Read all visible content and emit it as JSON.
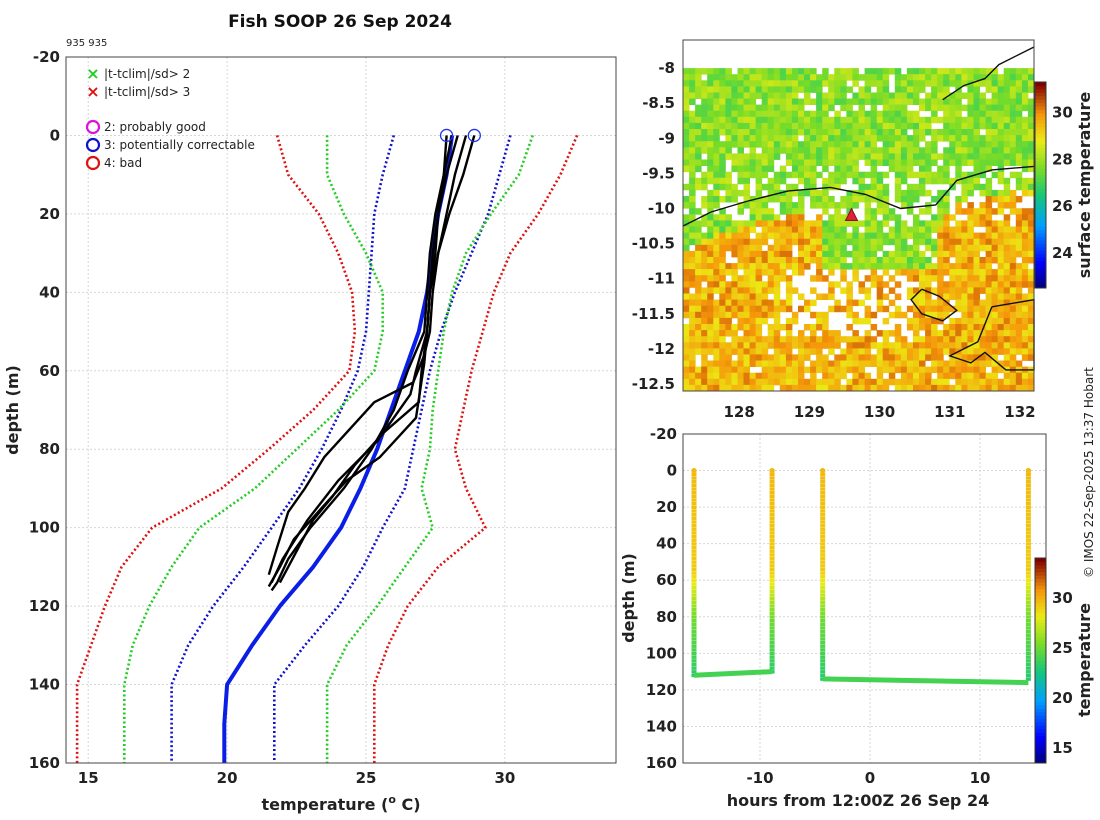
{
  "title": "Fish SOOP 26 Sep 2024",
  "subtitle": "935 935",
  "copyright": "© IMOS 22-Sep-2025 13:37 Hobart",
  "colors": {
    "clim3": "#dd1111",
    "clim2": "#22cc22",
    "clim1": "#1111cc",
    "mean": "#0a1ee6",
    "profile": "#000000",
    "flag_circle": "#2233ee"
  },
  "chart_data": [
    {
      "type": "line",
      "name": "profile",
      "xlabel": "temperature (",
      "xlabel_sup": "o",
      "xlabel_end": " C)",
      "ylabel": "depth (m)",
      "xlim": [
        14.2,
        34.0
      ],
      "ylim": [
        -20,
        160
      ],
      "xticks": [
        "15",
        "20",
        "25",
        "30"
      ],
      "xtick_values": [
        15,
        20,
        25,
        30
      ],
      "yticks": [
        "-20",
        "0",
        "20",
        "40",
        "60",
        "80",
        "100",
        "120",
        "140",
        "160"
      ],
      "ytick_values": [
        -20,
        0,
        20,
        40,
        60,
        80,
        100,
        120,
        140,
        160
      ],
      "legend_x": [
        {
          "label": "|t-tclim|/sd> 2",
          "color": "#22cc22"
        },
        {
          "label": "|t-tclim|/sd> 3",
          "color": "#dd1111"
        }
      ],
      "legend_o": [
        {
          "label": "2: probably good",
          "color": "#dd11dd"
        },
        {
          "label": "3: potentially correctable",
          "color": "#1111cc"
        },
        {
          "label": "4: bad",
          "color": "#dd1111"
        }
      ],
      "series": [
        {
          "name": "mean",
          "style": "mean",
          "temp": [
            28.1,
            27.9,
            27.6,
            27.4,
            27.2,
            26.9,
            26.4,
            25.9,
            25.4,
            24.8,
            24.1,
            23.1,
            21.9,
            20.9,
            20.0,
            19.9,
            19.9
          ],
          "depth": [
            0,
            10,
            20,
            30,
            40,
            50,
            60,
            70,
            80,
            90,
            100,
            110,
            120,
            130,
            140,
            150,
            160
          ]
        },
        {
          "name": "clim-1sd-lo",
          "style": "clim1",
          "temp": [
            26.0,
            25.6,
            25.3,
            25.2,
            25.1,
            25.0,
            24.7,
            24.1,
            23.4,
            22.6,
            21.6,
            20.6,
            19.5,
            18.6,
            18.0,
            18.0,
            18.0
          ],
          "depth": [
            0,
            10,
            20,
            30,
            40,
            50,
            60,
            70,
            80,
            90,
            100,
            110,
            120,
            130,
            140,
            150,
            160
          ]
        },
        {
          "name": "clim-1sd-hi",
          "style": "clim1",
          "temp": [
            30.2,
            29.8,
            29.4,
            28.8,
            28.2,
            27.7,
            27.3,
            27.0,
            26.7,
            26.4,
            25.6,
            24.9,
            24.0,
            22.8,
            21.7,
            21.7,
            21.7
          ],
          "depth": [
            0,
            10,
            20,
            30,
            40,
            50,
            60,
            70,
            80,
            90,
            100,
            110,
            120,
            130,
            140,
            150,
            160
          ]
        },
        {
          "name": "clim-2sd-lo",
          "style": "clim2",
          "temp": [
            23.6,
            23.6,
            24.2,
            25.0,
            25.6,
            25.6,
            25.3,
            24.0,
            22.5,
            21.0,
            19.0,
            18.0,
            17.2,
            16.6,
            16.3,
            16.3,
            16.3
          ],
          "depth": [
            0,
            10,
            20,
            30,
            40,
            50,
            60,
            70,
            80,
            90,
            100,
            110,
            120,
            130,
            140,
            150,
            160
          ]
        },
        {
          "name": "clim-2sd-hi",
          "style": "clim2",
          "temp": [
            31.0,
            30.5,
            29.5,
            28.6,
            28.1,
            27.8,
            27.6,
            27.4,
            27.3,
            27.0,
            27.4,
            26.4,
            25.4,
            24.3,
            23.6,
            23.6,
            23.6
          ],
          "depth": [
            0,
            10,
            20,
            30,
            40,
            50,
            60,
            70,
            80,
            90,
            100,
            110,
            120,
            130,
            140,
            150,
            160
          ]
        },
        {
          "name": "clim-3sd-lo",
          "style": "clim3",
          "temp": [
            21.8,
            22.2,
            23.3,
            24.0,
            24.5,
            24.6,
            24.4,
            23.1,
            21.5,
            19.8,
            17.3,
            16.2,
            15.6,
            15.1,
            14.6,
            14.6,
            14.6
          ],
          "depth": [
            0,
            10,
            20,
            30,
            40,
            50,
            60,
            70,
            80,
            90,
            100,
            110,
            120,
            130,
            140,
            150,
            160
          ]
        },
        {
          "name": "clim-3sd-hi",
          "style": "clim3",
          "temp": [
            32.6,
            32.0,
            31.2,
            30.2,
            29.6,
            29.2,
            28.8,
            28.5,
            28.2,
            28.6,
            29.3,
            27.6,
            26.5,
            25.8,
            25.3,
            25.3,
            25.3
          ],
          "depth": [
            0,
            10,
            20,
            30,
            40,
            50,
            60,
            70,
            80,
            90,
            100,
            110,
            120,
            130,
            140,
            150,
            160
          ]
        },
        {
          "name": "cast-1",
          "style": "profile",
          "temp": [
            28.1,
            27.8,
            27.5,
            27.3,
            27.2,
            27.1,
            26.5,
            26.0,
            25.2,
            24.2,
            23.0,
            22.2,
            21.8,
            21.6
          ],
          "depth": [
            0,
            10,
            20,
            30,
            40,
            50,
            60,
            70,
            80,
            90,
            100,
            108,
            114,
            116
          ]
        },
        {
          "name": "cast-2",
          "style": "profile",
          "temp": [
            28.3,
            27.9,
            27.6,
            27.4,
            27.3,
            27.2,
            26.8,
            26.6,
            25.4,
            24.0,
            22.9,
            22.0,
            21.6
          ],
          "depth": [
            0,
            10,
            20,
            30,
            40,
            50,
            60,
            66,
            78,
            88,
            98,
            108,
            114
          ]
        },
        {
          "name": "cast-3",
          "style": "profile",
          "temp": [
            27.9,
            27.8,
            27.6,
            27.5,
            27.3,
            27.2,
            27.1,
            26.8,
            25.5,
            24.3,
            23.4,
            22.4,
            21.9,
            21.5
          ],
          "depth": [
            0,
            10,
            20,
            30,
            40,
            50,
            58,
            72,
            82,
            88,
            95,
            103,
            110,
            115
          ]
        },
        {
          "name": "cast-4",
          "style": "profile",
          "temp": [
            28.9,
            28.5,
            28.0,
            27.6,
            27.3,
            27.2,
            27.0,
            26.9,
            25.6,
            24.6,
            23.8,
            23.1,
            22.5,
            21.9
          ],
          "depth": [
            0,
            10,
            20,
            30,
            40,
            50,
            60,
            68,
            76,
            84,
            92,
            98,
            106,
            114
          ]
        },
        {
          "name": "cast-5",
          "style": "profile",
          "temp": [
            28.6,
            28.2,
            27.9,
            27.6,
            27.4,
            27.3,
            27.1,
            26.7,
            25.3,
            23.5,
            22.8,
            22.2,
            21.8,
            21.5
          ],
          "depth": [
            0,
            10,
            20,
            30,
            40,
            50,
            56,
            63,
            68,
            82,
            90,
            96,
            105,
            112
          ]
        }
      ],
      "flag_points": [
        {
          "temp": 27.9,
          "depth": 0
        },
        {
          "temp": 28.9,
          "depth": 0
        }
      ]
    },
    {
      "type": "heatmap",
      "name": "surface-map",
      "colorbar_label": "surface temperature",
      "xlim": [
        127.2,
        132.2
      ],
      "ylim": [
        -12.6,
        -7.6
      ],
      "xticks": [
        "128",
        "129",
        "130",
        "131",
        "132"
      ],
      "xtick_values": [
        128,
        129,
        130,
        131,
        132
      ],
      "yticks": [
        "-8",
        "-8.5",
        "-9",
        "-9.5",
        "-10",
        "-10.5",
        "-11",
        "-11.5",
        "-12",
        "-12.5"
      ],
      "ytick_values": [
        -8,
        -8.5,
        -9,
        -9.5,
        -10,
        -10.5,
        -11,
        -11.5,
        -12,
        -12.5
      ],
      "clim": [
        22.5,
        31.3
      ],
      "cbar_ticks": [
        "24",
        "26",
        "28",
        "30"
      ],
      "cbar_tick_values": [
        24,
        26,
        28,
        30
      ],
      "marker": {
        "lon": 129.6,
        "lat": -10.1
      },
      "contour_front": [
        [
          127.2,
          -10.25
        ],
        [
          127.6,
          -10.05
        ],
        [
          128.1,
          -9.9
        ],
        [
          128.7,
          -9.75
        ],
        [
          129.3,
          -9.7
        ],
        [
          129.8,
          -9.8
        ],
        [
          130.3,
          -10.0
        ],
        [
          130.8,
          -9.95
        ],
        [
          131.1,
          -9.6
        ],
        [
          131.6,
          -9.45
        ],
        [
          132.2,
          -9.4
        ]
      ],
      "coast_north": [
        [
          130.9,
          -8.45
        ],
        [
          131.2,
          -8.25
        ],
        [
          131.5,
          -8.15
        ],
        [
          131.7,
          -7.95
        ],
        [
          132.0,
          -7.8
        ],
        [
          132.2,
          -7.7
        ]
      ],
      "coast_south": [
        [
          130.6,
          -11.15
        ],
        [
          130.85,
          -11.25
        ],
        [
          131.1,
          -11.45
        ],
        [
          130.9,
          -11.6
        ],
        [
          130.6,
          -11.5
        ],
        [
          130.45,
          -11.3
        ],
        [
          130.6,
          -11.15
        ]
      ],
      "coast_south2": [
        [
          131.6,
          -11.4
        ],
        [
          132.2,
          -11.3
        ],
        [
          132.2,
          -12.3
        ],
        [
          131.8,
          -12.3
        ],
        [
          131.5,
          -12.05
        ],
        [
          131.3,
          -12.2
        ],
        [
          131.0,
          -12.1
        ],
        [
          131.4,
          -11.9
        ],
        [
          131.6,
          -11.4
        ]
      ]
    },
    {
      "type": "scatter",
      "name": "depth-time",
      "xlabel": "hours from 12:00Z 26 Sep 24",
      "ylabel": "depth (m)",
      "colorbar_label": "temperature",
      "xlim": [
        -17,
        16
      ],
      "ylim": [
        -20,
        160
      ],
      "xticks": [
        "-10",
        "0",
        "10"
      ],
      "xtick_values": [
        -10,
        0,
        10
      ],
      "yticks": [
        "-20",
        "0",
        "20",
        "40",
        "60",
        "80",
        "100",
        "120",
        "140",
        "160"
      ],
      "ytick_values": [
        -20,
        0,
        20,
        40,
        60,
        80,
        100,
        120,
        140,
        160
      ],
      "clim": [
        13.5,
        34.0
      ],
      "cbar_ticks": [
        "15",
        "20",
        "25",
        "30"
      ],
      "cbar_tick_values": [
        15,
        20,
        25,
        30
      ],
      "casts": [
        {
          "hour": -16.0,
          "max_depth": 112
        },
        {
          "hour": -8.9,
          "max_depth": 110
        },
        {
          "hour": -4.3,
          "max_depth": 114
        },
        {
          "hour": 14.4,
          "max_depth": 115
        }
      ],
      "bottom_segments": [
        {
          "h0": -16.0,
          "h1": -8.9,
          "d0": 112,
          "d1": 110
        },
        {
          "h0": -4.3,
          "h1": 14.4,
          "d0": 114,
          "d1": 116
        }
      ]
    }
  ]
}
